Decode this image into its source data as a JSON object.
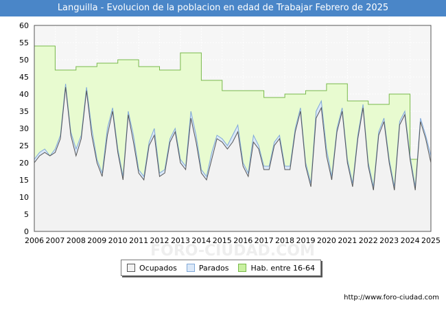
{
  "title": "Languilla - Evolucion de la poblacion en edad de Trabajar Febrero de 2025",
  "footer": "http://www.foro-ciudad.com",
  "watermark": "FORO-CIUDAD.COM",
  "legend": {
    "ocupados": "Ocupados",
    "parados": "Parados",
    "hab": "Hab. entre 16-64"
  },
  "colors": {
    "title_bg": "#4a86c8",
    "hab_fill": "#e8fbd0",
    "hab_line": "#78b84a",
    "parados_fill": "#dbe8f8",
    "parados_line": "#7fa8d8",
    "ocupados_fill": "#f2f2f2",
    "ocupados_line": "#555555"
  },
  "chart_data": {
    "type": "area",
    "title": "Languilla - Evolucion de la poblacion en edad de Trabajar Febrero de 2025",
    "xlim": [
      2006,
      2025
    ],
    "ylim": [
      0,
      60
    ],
    "yticks": [
      0,
      5,
      10,
      15,
      20,
      25,
      30,
      35,
      40,
      45,
      50,
      55,
      60
    ],
    "xticks": [
      "2006",
      "2007",
      "2008",
      "2009",
      "2010",
      "2011",
      "2012",
      "2013",
      "2014",
      "2015",
      "2016",
      "2017",
      "2018",
      "2019",
      "2020",
      "2021",
      "2022",
      "2023",
      "2024",
      "2025"
    ],
    "grid": true,
    "legend_position": "bottom-center",
    "series": [
      {
        "name": "Hab. entre 16-64",
        "type": "step",
        "years": [
          2006,
          2007,
          2008,
          2009,
          2010,
          2011,
          2012,
          2013,
          2014,
          2015,
          2016,
          2017,
          2018,
          2019,
          2020,
          2021,
          2022,
          2023,
          2024
        ],
        "values": [
          54,
          47,
          48,
          49,
          50,
          48,
          47,
          52,
          44,
          41,
          41,
          39,
          40,
          41,
          43,
          38,
          37,
          40,
          21
        ]
      },
      {
        "name": "Parados",
        "x": [
          2006.0,
          2006.25,
          2006.5,
          2006.75,
          2007.0,
          2007.25,
          2007.5,
          2007.75,
          2008.0,
          2008.25,
          2008.5,
          2008.75,
          2009.0,
          2009.25,
          2009.5,
          2009.75,
          2010.0,
          2010.25,
          2010.5,
          2010.75,
          2011.0,
          2011.25,
          2011.5,
          2011.75,
          2012.0,
          2012.25,
          2012.5,
          2012.75,
          2013.0,
          2013.25,
          2013.5,
          2013.75,
          2014.0,
          2014.25,
          2014.5,
          2014.75,
          2015.0,
          2015.25,
          2015.5,
          2015.75,
          2016.0,
          2016.25,
          2016.5,
          2016.75,
          2017.0,
          2017.25,
          2017.5,
          2017.75,
          2018.0,
          2018.25,
          2018.5,
          2018.75,
          2019.0,
          2019.25,
          2019.5,
          2019.75,
          2020.0,
          2020.25,
          2020.5,
          2020.75,
          2021.0,
          2021.25,
          2021.5,
          2021.75,
          2022.0,
          2022.25,
          2022.5,
          2022.75,
          2023.0,
          2023.25,
          2023.5,
          2023.75,
          2024.0,
          2024.25,
          2024.5,
          2024.75,
          2025.0
        ],
        "values": [
          21,
          23,
          24,
          22,
          24,
          28,
          43,
          29,
          24,
          28,
          42,
          30,
          21,
          17,
          30,
          36,
          24,
          16,
          35,
          28,
          18,
          16,
          26,
          30,
          17,
          18,
          27,
          30,
          21,
          19,
          35,
          28,
          18,
          16,
          23,
          28,
          27,
          25,
          28,
          31,
          20,
          17,
          28,
          25,
          19,
          19,
          26,
          28,
          19,
          19,
          30,
          36,
          20,
          14,
          35,
          38,
          24,
          16,
          30,
          36,
          21,
          14,
          28,
          37,
          20,
          13,
          29,
          33,
          21,
          13,
          32,
          35,
          22,
          13,
          33,
          28,
          22
        ]
      },
      {
        "name": "Ocupados",
        "x": [
          2006.0,
          2006.25,
          2006.5,
          2006.75,
          2007.0,
          2007.25,
          2007.5,
          2007.75,
          2008.0,
          2008.25,
          2008.5,
          2008.75,
          2009.0,
          2009.25,
          2009.5,
          2009.75,
          2010.0,
          2010.25,
          2010.5,
          2010.75,
          2011.0,
          2011.25,
          2011.5,
          2011.75,
          2012.0,
          2012.25,
          2012.5,
          2012.75,
          2013.0,
          2013.25,
          2013.5,
          2013.75,
          2014.0,
          2014.25,
          2014.5,
          2014.75,
          2015.0,
          2015.25,
          2015.5,
          2015.75,
          2016.0,
          2016.25,
          2016.5,
          2016.75,
          2017.0,
          2017.25,
          2017.5,
          2017.75,
          2018.0,
          2018.25,
          2018.5,
          2018.75,
          2019.0,
          2019.25,
          2019.5,
          2019.75,
          2020.0,
          2020.25,
          2020.5,
          2020.75,
          2021.0,
          2021.25,
          2021.5,
          2021.75,
          2022.0,
          2022.25,
          2022.5,
          2022.75,
          2023.0,
          2023.25,
          2023.5,
          2023.75,
          2024.0,
          2024.25,
          2024.5,
          2024.75,
          2025.0
        ],
        "values": [
          20,
          22,
          23,
          22,
          23,
          27,
          42,
          28,
          22,
          27,
          41,
          28,
          20,
          16,
          28,
          35,
          23,
          15,
          34,
          26,
          17,
          15,
          25,
          28,
          16,
          17,
          26,
          29,
          20,
          18,
          33,
          26,
          17,
          15,
          21,
          27,
          26,
          24,
          26,
          29,
          19,
          16,
          26,
          24,
          18,
          18,
          25,
          27,
          18,
          18,
          29,
          35,
          19,
          13,
          33,
          36,
          22,
          15,
          29,
          35,
          20,
          13,
          27,
          36,
          19,
          12,
          28,
          32,
          20,
          12,
          31,
          34,
          21,
          12,
          32,
          27,
          20
        ]
      }
    ]
  }
}
